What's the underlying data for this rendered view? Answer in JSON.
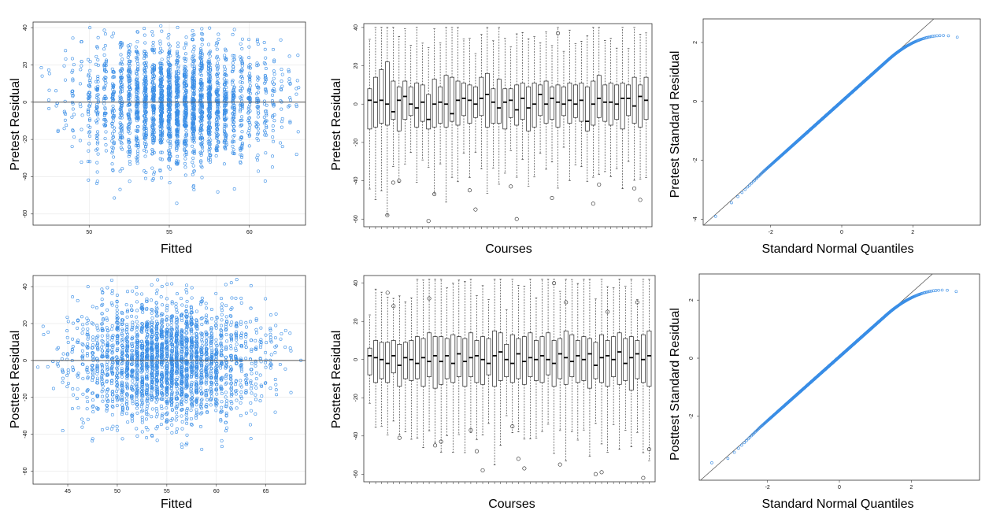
{
  "colors": {
    "points": "#3a8ee6",
    "box": "#222222",
    "frame": "#333333",
    "ref_line": "#555555"
  },
  "chart_data": [
    {
      "type": "scatter",
      "xlabel": "Fitted",
      "ylabel": "Pretest Residual",
      "xlim": [
        46.5,
        63.5
      ],
      "ylim": [
        -66,
        43
      ],
      "xticks": [
        50,
        55,
        60
      ],
      "yticks": [
        40,
        20,
        0,
        -20,
        -40,
        -60
      ],
      "reference_line_y": 0,
      "grid": true,
      "point_summary": {
        "n_approx": 2600,
        "x_center": 55.5,
        "x_spread": 3.0,
        "y_sd": 16
      }
    },
    {
      "type": "box",
      "xlabel": "Courses",
      "ylabel": "Pretest Residual",
      "ylim": [
        -64,
        42
      ],
      "yticks": [
        40,
        20,
        0,
        -20,
        -40,
        -60
      ],
      "n_groups": 48,
      "series": [
        {
          "q1": -13,
          "median": 2,
          "q3": 8
        },
        {
          "q1": -12,
          "median": 1,
          "q3": 14
        },
        {
          "q1": -10,
          "median": 2,
          "q3": 18
        },
        {
          "q1": -11,
          "median": 0,
          "q3": 22
        },
        {
          "q1": -8,
          "median": -4,
          "q3": 12
        },
        {
          "q1": -14,
          "median": 2,
          "q3": 9
        },
        {
          "q1": -8,
          "median": 4,
          "q3": 12
        },
        {
          "q1": -6,
          "median": 0,
          "q3": 9
        },
        {
          "q1": -12,
          "median": -2,
          "q3": 11
        },
        {
          "q1": -9,
          "median": 1,
          "q3": 10
        },
        {
          "q1": -13,
          "median": -8,
          "q3": 5
        },
        {
          "q1": -12,
          "median": 0,
          "q3": 13
        },
        {
          "q1": -10,
          "median": 1,
          "q3": 9
        },
        {
          "q1": -12,
          "median": 0,
          "q3": 15
        },
        {
          "q1": -9,
          "median": -5,
          "q3": 14
        },
        {
          "q1": -11,
          "median": 2,
          "q3": 12
        },
        {
          "q1": -6,
          "median": 3,
          "q3": 11
        },
        {
          "q1": -10,
          "median": 2,
          "q3": 10
        },
        {
          "q1": -7,
          "median": 0,
          "q3": 9
        },
        {
          "q1": -6,
          "median": 3,
          "q3": 14
        },
        {
          "q1": -12,
          "median": 5,
          "q3": 16
        },
        {
          "q1": -10,
          "median": 1,
          "q3": 8
        },
        {
          "q1": -10,
          "median": -2,
          "q3": 13
        },
        {
          "q1": -13,
          "median": 1,
          "q3": 8
        },
        {
          "q1": -7,
          "median": 2,
          "q3": 8
        },
        {
          "q1": -11,
          "median": -3,
          "q3": 10
        },
        {
          "q1": -8,
          "median": 3,
          "q3": 11
        },
        {
          "q1": -14,
          "median": -2,
          "q3": 9
        },
        {
          "q1": -12,
          "median": 0,
          "q3": 11
        },
        {
          "q1": -6,
          "median": 5,
          "q3": 10
        },
        {
          "q1": -10,
          "median": 0,
          "q3": 12
        },
        {
          "q1": -8,
          "median": 3,
          "q3": 9
        },
        {
          "q1": -12,
          "median": 1,
          "q3": 10
        },
        {
          "q1": -6,
          "median": 0,
          "q3": 9
        },
        {
          "q1": -10,
          "median": 2,
          "q3": 11
        },
        {
          "q1": -7,
          "median": 0,
          "q3": 10
        },
        {
          "q1": -9,
          "median": 2,
          "q3": 11
        },
        {
          "q1": -14,
          "median": -9,
          "q3": 9
        },
        {
          "q1": -11,
          "median": 0,
          "q3": 12
        },
        {
          "q1": -7,
          "median": 3,
          "q3": 15
        },
        {
          "q1": -9,
          "median": 1,
          "q3": 10
        },
        {
          "q1": -11,
          "median": 1,
          "q3": 11
        },
        {
          "q1": -8,
          "median": 0,
          "q3": 10
        },
        {
          "q1": -13,
          "median": 3,
          "q3": 11
        },
        {
          "q1": -6,
          "median": 3,
          "q3": 10
        },
        {
          "q1": -10,
          "median": -1,
          "q3": 14
        },
        {
          "q1": -12,
          "median": 4,
          "q3": 10
        },
        {
          "q1": -8,
          "median": 2,
          "q3": 14
        }
      ],
      "outliers": [
        -58,
        -61,
        -45,
        -43,
        -49,
        -52,
        -44,
        -41,
        -47,
        -55,
        -60,
        37,
        -42,
        -50,
        -40
      ]
    },
    {
      "type": "qq",
      "xlabel": "Standard Normal Quantiles",
      "ylabel": "Pretest Standard Residual",
      "xlim": [
        -3.9,
        3.9
      ],
      "ylim": [
        -4.2,
        2.8
      ],
      "xticks": [
        -2,
        0,
        2
      ],
      "yticks": [
        2,
        0,
        -2,
        -4
      ],
      "reference_line": {
        "slope": 1.08,
        "intercept": 0.0
      },
      "point_summary": {
        "n_approx": 2600,
        "max_y": 2.4,
        "min_y": -3.9
      }
    },
    {
      "type": "scatter",
      "xlabel": "Fitted",
      "ylabel": "Posttest  Residual",
      "xlim": [
        41.5,
        69
      ],
      "ylim": [
        -67,
        46
      ],
      "xticks": [
        45,
        50,
        55,
        60,
        65
      ],
      "yticks": [
        40,
        20,
        0,
        -20,
        -40,
        -60
      ],
      "reference_line_y": 0,
      "grid": true,
      "point_summary": {
        "n_approx": 2600,
        "x_center": 55,
        "x_spread": 4.5,
        "y_sd": 16
      }
    },
    {
      "type": "box",
      "xlabel": "Courses",
      "ylabel": "Posttest  Residual",
      "ylim": [
        -64,
        44
      ],
      "yticks": [
        40,
        20,
        0,
        -20,
        -40,
        -60
      ],
      "n_groups": 48,
      "series": [
        {
          "q1": -8,
          "median": 2,
          "q3": 6
        },
        {
          "q1": -12,
          "median": 1,
          "q3": 10
        },
        {
          "q1": -10,
          "median": 0,
          "q3": 9
        },
        {
          "q1": -12,
          "median": -2,
          "q3": 9
        },
        {
          "q1": -7,
          "median": 2,
          "q3": 10
        },
        {
          "q1": -14,
          "median": -3,
          "q3": 8
        },
        {
          "q1": -10,
          "median": 1,
          "q3": 9
        },
        {
          "q1": -11,
          "median": 0,
          "q3": 10
        },
        {
          "q1": -10,
          "median": -2,
          "q3": 12
        },
        {
          "q1": -14,
          "median": 1,
          "q3": 11
        },
        {
          "q1": -9,
          "median": -1,
          "q3": 14
        },
        {
          "q1": -15,
          "median": 2,
          "q3": 12
        },
        {
          "q1": -13,
          "median": -1,
          "q3": 12
        },
        {
          "q1": -10,
          "median": 2,
          "q3": 11
        },
        {
          "q1": -12,
          "median": -2,
          "q3": 13
        },
        {
          "q1": -9,
          "median": 3,
          "q3": 12
        },
        {
          "q1": -14,
          "median": -1,
          "q3": 11
        },
        {
          "q1": -9,
          "median": 1,
          "q3": 14
        },
        {
          "q1": -12,
          "median": 2,
          "q3": 10
        },
        {
          "q1": -13,
          "median": 0,
          "q3": 12
        },
        {
          "q1": -8,
          "median": -2,
          "q3": 11
        },
        {
          "q1": -14,
          "median": 2,
          "q3": 15
        },
        {
          "q1": -11,
          "median": 4,
          "q3": 14
        },
        {
          "q1": -9,
          "median": 0,
          "q3": 8
        },
        {
          "q1": -12,
          "median": -2,
          "q3": 13
        },
        {
          "q1": -10,
          "median": 3,
          "q3": 11
        },
        {
          "q1": -13,
          "median": -1,
          "q3": 12
        },
        {
          "q1": -9,
          "median": 1,
          "q3": 14
        },
        {
          "q1": -11,
          "median": 0,
          "q3": 10
        },
        {
          "q1": -12,
          "median": 2,
          "q3": 12
        },
        {
          "q1": -8,
          "median": 0,
          "q3": 14
        },
        {
          "q1": -14,
          "median": -2,
          "q3": 10
        },
        {
          "q1": -10,
          "median": 3,
          "q3": 11
        },
        {
          "q1": -13,
          "median": 1,
          "q3": 15
        },
        {
          "q1": -9,
          "median": -1,
          "q3": 13
        },
        {
          "q1": -12,
          "median": 2,
          "q3": 10
        },
        {
          "q1": -11,
          "median": 0,
          "q3": 12
        },
        {
          "q1": -15,
          "median": 3,
          "q3": 11
        },
        {
          "q1": -10,
          "median": -3,
          "q3": 9
        },
        {
          "q1": -12,
          "median": 1,
          "q3": 13
        },
        {
          "q1": -14,
          "median": 2,
          "q3": 10
        },
        {
          "q1": -9,
          "median": 0,
          "q3": 12
        },
        {
          "q1": -13,
          "median": 4,
          "q3": 14
        },
        {
          "q1": -11,
          "median": -2,
          "q3": 11
        },
        {
          "q1": -16,
          "median": 1,
          "q3": 12
        },
        {
          "q1": -10,
          "median": 3,
          "q3": 10
        },
        {
          "q1": -12,
          "median": 0,
          "q3": 13
        },
        {
          "q1": -14,
          "median": 2,
          "q3": 15
        }
      ],
      "outliers": [
        35,
        32,
        -37,
        -35,
        40,
        -60,
        30,
        28,
        -45,
        -48,
        -52,
        -55,
        -59,
        -62,
        -41,
        -43,
        -58,
        -57,
        30,
        25,
        -47
      ]
    },
    {
      "type": "qq",
      "xlabel": "Standard Normal Quantiles",
      "ylabel": "Posttest Standard Residual",
      "xlim": [
        -3.9,
        3.9
      ],
      "ylim": [
        -4.2,
        2.9
      ],
      "xticks": [
        -2,
        0,
        2
      ],
      "yticks": [
        2,
        0,
        -2
      ],
      "reference_line": {
        "slope": 1.1,
        "intercept": 0.05
      },
      "point_summary": {
        "n_approx": 2600,
        "max_y": 2.6,
        "min_y": -3.6
      }
    }
  ]
}
